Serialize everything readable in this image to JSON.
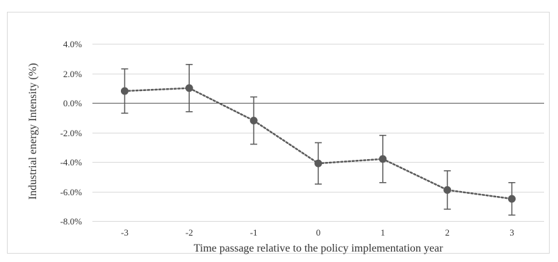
{
  "chart_data": {
    "type": "line",
    "title": "",
    "xlabel": "Time passage relative to the policy implementation year",
    "ylabel": "Industrial energy Intensity (%)",
    "x": [
      -3,
      -2,
      -1,
      0,
      1,
      2,
      3
    ],
    "x_tick_labels": [
      "-3",
      "-2",
      "-1",
      "0",
      "1",
      "2",
      "3"
    ],
    "ylim": [
      -8.0,
      4.0
    ],
    "y_ticks": [
      4.0,
      2.0,
      0.0,
      -2.0,
      -4.0,
      -6.0,
      -8.0
    ],
    "y_tick_labels": [
      "4.0%",
      "2.0%",
      "0.0%",
      "-2.0%",
      "-4.0%",
      "-6.0%",
      "-8.0%"
    ],
    "series": [
      {
        "values": [
          0.8,
          1.0,
          -1.2,
          -4.1,
          -3.8,
          -5.9,
          -6.5
        ],
        "error_low": [
          -0.7,
          -0.6,
          -2.8,
          -5.5,
          -5.4,
          -7.2,
          -7.6
        ],
        "error_high": [
          2.3,
          2.6,
          0.4,
          -2.7,
          -2.2,
          -4.6,
          -5.4
        ]
      }
    ],
    "line_style": "dotted",
    "grid": "horizontal",
    "zero_line": true,
    "legend": "none",
    "colors": {
      "series": "#5a5a5a",
      "grid": "#d9d9d9",
      "zero_line": "#595959",
      "frame": "#d9d9d9"
    }
  }
}
